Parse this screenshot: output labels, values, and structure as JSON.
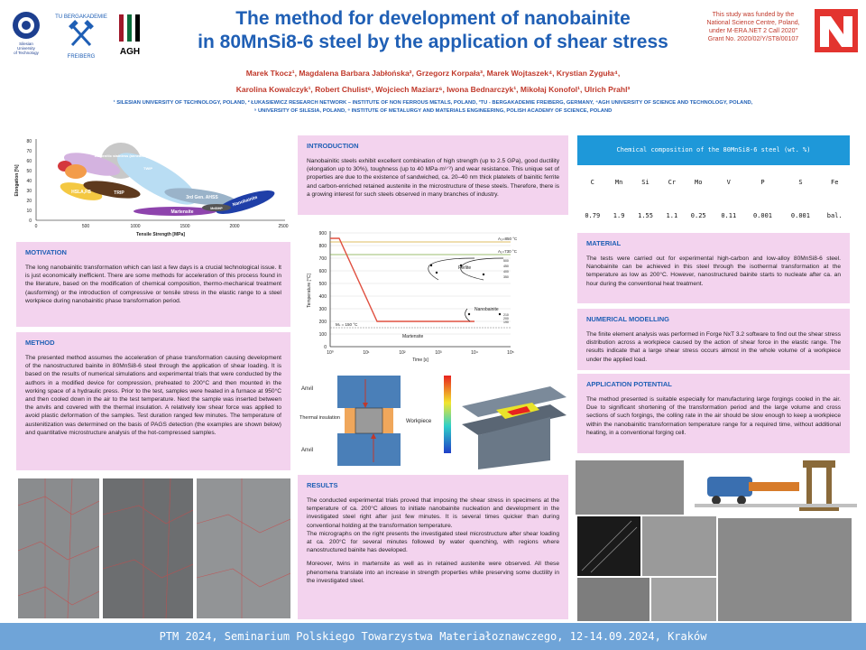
{
  "header": {
    "title_line1": "The method for development of nanobainite",
    "title_line2": "in 80MnSi8-6 steel by the application of shear stress",
    "funding": [
      "This study was funded by the",
      "National Science Centre, Poland,",
      "under M-ERA.NET 2 Call 2020\"",
      "Grant No. 2020/02/Y/ST8/00107"
    ],
    "authors_line1": "Marek Tkocz¹, Magdalena Barbara Jabłońska², Grzegorz Korpała³, Marek Wojtaszek⁴, Krystian Zyguła⁴,",
    "authors_line2": "Karolina Kowalczyk¹, Robert Chulist⁶, Wojciech Maziarz⁶, Iwona Bednarczyk¹, Mikołaj Konofol¹, Ulrich Prahl³",
    "affil_line1": "¹ SILESIAN UNIVERSITY OF TECHNOLOGY, POLAND, ² ŁUKASIEWICZ RESEARCH NETWORK – INSTITUTE OF NON FERROUS METALS, POLAND, ³TU - BERGAKADEMIE FREIBERG, GERMANY, ⁴AGH UNIVERSITY OF SCIENCE AND TECHNOLOGY, POLAND,",
    "affil_line2": "⁵ UNIVERSITY OF SILESIA, POLAND, ⁶ INSTITUTE OF METALURGY AND MATERIALS ENGINEERING, POLISH ACADEMY OF SCIENCE, POLAND"
  },
  "logos": {
    "silesian": "Silesian University of Technology",
    "freiberg": "TU BERGAKADEMIE FREIBERG",
    "agh": "AGH"
  },
  "intro": {
    "heading": "INTRODUCTION",
    "text": "Nanobainitic steels exhibit excellent combination of high strength (up to 2.5 GPa), good ductility (elongation up to 30%), toughness (up to 40 MPa·m¹ᐟ²) and wear resistance. This unique set of properties are due to the existence of sandwiched, ca. 20–40 nm thick platelets of bainitic ferrite and carbon-enriched retained austenite in the microstructure of these steels. Therefore, there is a growing interest for such steels observed in many branches of industry."
  },
  "motivation": {
    "heading": "MOTIVATION",
    "text": "The long nanobainitic transformation which can last a few days is a crucial technological issue. It is just economically inefficient. There are some methods for acceleration of this process found in the literature, based on the modification of chemical composition, thermo-mechanical treatment (ausforming) or the introduction of compressive or tensile stress in the elastic range to a steel workpiece during nanobainitic phase transformation period."
  },
  "method": {
    "heading": "METHOD",
    "text": "The presented method assumes the acceleration of phase transformation causing development of the nanostructured bainite in 80MnSi8-6 steel through the application of shear loading. It is based on the results of numerical simulations and experimental trials that were conducted by the authors in a modified device for compression, preheated to 200°C and then mounted in the working space of a hydraulic press. Prior to the test, samples were heated in a furnace at 950°C and then cooled down in the air to the test temperature. Next the sample was inserted between the anvils and covered with the thermal insulation. A relatively low shear force was applied to avoid plastic deformation of the samples. Test duration ranged few minutes. The temperature of austenitization was determined on the basis of PAGS detection (the examples are shown below) and quantitative microstructure analysis of the hot-compressed samples."
  },
  "results": {
    "heading": "RESULTS",
    "text1": "The conducted experimental trials proved that imposing the shear stress in specimens at the temperature of ca. 200°C allows to initiate nanobainite nucleation and development in the investigated steel right after just few minutes. It is several times quicker than during conventional holding at the transformation temperature.",
    "text2": "The micrographs on the right presents the investigated steel microstructure after shear loading at ca. 200°C for several minutes followed by water quenching, with regions where nanostructured bainite has developed.",
    "text3": "Moreover, twins in martensite as well as in retained austenite were observed. All these phenomena translate into an increase in strength properties while preserving some ductility in the investigated steel."
  },
  "chemistry": {
    "heading": "Chemical composition of the 80MnSi8-6 steel (wt. %)",
    "elements": [
      "C",
      "Mn",
      "Si",
      "Cr",
      "Mo",
      "V",
      "P",
      "S",
      "Fe"
    ],
    "values": [
      "0.79",
      "1.9",
      "1.55",
      "1.1",
      "0.25",
      "0.11",
      "0.001",
      "0.001",
      "bal."
    ]
  },
  "material": {
    "heading": "MATERIAL",
    "text": "The tests were carried out for experimental high-carbon and low-alloy 80MnSi8-6 steel. Nanobainite can be achieved in this steel through the isothermal transformation at the temperature as low as 200°C. However, nanostructured bainite starts to nucleate after ca. an hour during the conventional heat treatment."
  },
  "numerical": {
    "heading": "NUMERICAL MODELLING",
    "text": "The finite element analysis was performed in Forge NxT 3.2 software to find out the shear stress distribution across a workpiece caused by the action of shear force in the elastic range. The results indicate that a large shear stress occurs almost in the whole volume of a workpiece under the applied load."
  },
  "application": {
    "heading": "APPLICATION POTENTIAL",
    "text": "The method presented is suitable especially for manufacturing large forgings cooled in the air. Due to significant shortening of the transformation period and the large volume and cross sections of such forgings, the colling rate in the air should be slow enough to keep a workpiece within the nanobainitic transformation temperature range for a required time, without additional heating, in a conventional forging cell."
  },
  "banana_chart": {
    "ylabel": "Elongation [%]",
    "xlabel": "Tensile Strength [MPa]",
    "yticks": [
      "0",
      "10",
      "20",
      "30",
      "40",
      "50",
      "60",
      "70",
      "80"
    ],
    "xticks": [
      "0",
      "500",
      "1000",
      "1500",
      "2000",
      "2500"
    ],
    "labels": {
      "austenitic": "Austenitic stainless (annealed)",
      "twip": "TWIP",
      "trip": "TRIP",
      "gen3": "3rd Gen. AHSS",
      "nanobainite": "Nanobainite",
      "martensite": "Martensite",
      "hsla": "HSLA,FB",
      "mnbhp": "MnB/HP"
    }
  },
  "cct_chart": {
    "ylabel": "Temperature [°C]",
    "xlabel": "Time [s]",
    "yticks": [
      "0",
      "100",
      "200",
      "300",
      "400",
      "500",
      "600",
      "700",
      "800",
      "900"
    ],
    "xticks": [
      "10⁰",
      "10¹",
      "10²",
      "10³",
      "10⁴",
      "10⁵"
    ],
    "ac3": "A₃=850 °C",
    "ac1": "A₁=730 °C",
    "perlite": "Perlite",
    "nanobainite": "Nanobainite",
    "martensite": "Martensite",
    "ms": "Mₛ = 150 °C",
    "perlite_temps": [
      "500",
      "450",
      "400",
      "350"
    ],
    "nb_temps": [
      "210",
      "200",
      "190"
    ]
  },
  "schematic": {
    "anvil_top": "Anvil",
    "insulation": "Thermal insulation",
    "workpiece": "Workpiece",
    "anvil_bottom": "Anvil"
  },
  "footer": {
    "text": "PTM 2024, Seminarium Polskiego Towarzystwa Materiałoznawczego, 12-14.09.2024, Kraków"
  },
  "colors": {
    "title_blue": "#1f5fb5",
    "author_red": "#c0392b",
    "box_pink": "#f3d3ee",
    "table_header": "#1e98d9",
    "footer_blue": "#6fa4d8"
  }
}
